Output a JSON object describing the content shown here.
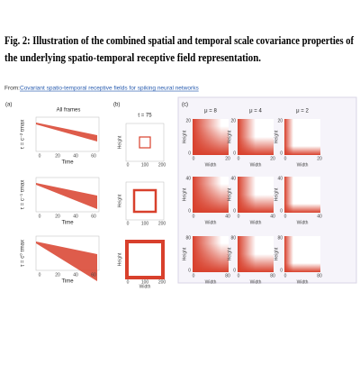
{
  "header": {
    "title_lines": [
      "Fig. 2: Illustration of the combined spatial and temporal scale covariance properties of",
      "the underlying spatio-temporal receptive field representation."
    ],
    "source_prefix": "From:",
    "source_link": "Covariant spatio-temporal receptive fields for spiking neural networks"
  },
  "figure": {
    "panel_a": {
      "label": "(a)",
      "title": "All frames",
      "xlabel": "Time",
      "xticks": [
        "0",
        "20",
        "40",
        "60"
      ],
      "row_labels": [
        "τ = c⁻² τmax",
        "τ = c⁻¹ τmax",
        "τ = c⁰ τmax"
      ]
    },
    "panel_b": {
      "label": "(b)",
      "title": "t = 75",
      "xlabel": "Width",
      "ylabel": "Height",
      "xticks": [
        "0",
        "100",
        "200"
      ]
    },
    "panel_c": {
      "label": "(c)",
      "columns": [
        "μ = 8",
        "μ = 4",
        "μ = 2"
      ],
      "xlabel": "Width",
      "ylabel": "Height",
      "rows": [
        {
          "yticks": [
            "0",
            "20"
          ],
          "xticks": [
            "0",
            "20"
          ]
        },
        {
          "yticks": [
            "0",
            "40"
          ],
          "xticks": [
            "0",
            "40"
          ]
        },
        {
          "yticks": [
            "0",
            "80"
          ],
          "xticks": [
            "0",
            "80"
          ]
        }
      ]
    }
  }
}
